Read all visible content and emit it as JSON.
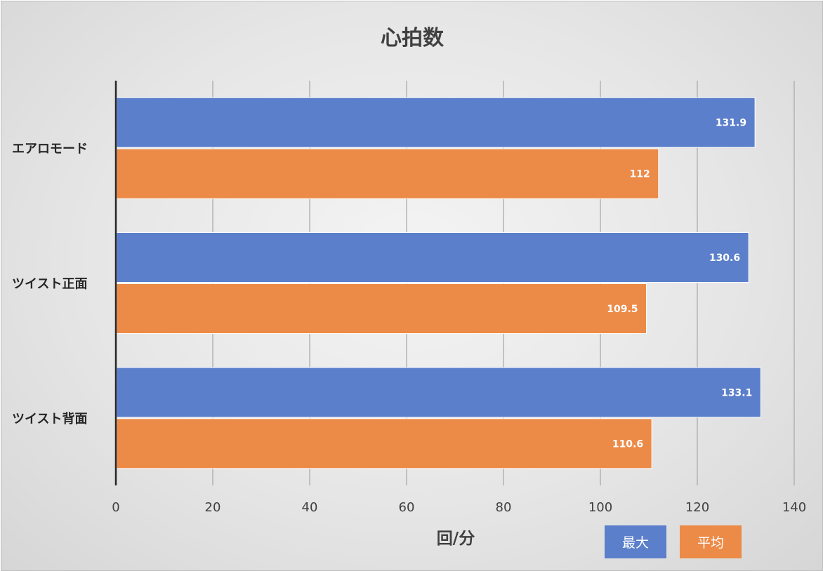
{
  "chart_data": {
    "type": "bar",
    "orientation": "horizontal",
    "title": "心拍数",
    "xlabel": "回/分",
    "ylabel": "",
    "categories": [
      "エアロモード",
      "ツイスト正面",
      "ツイスト背面"
    ],
    "series": [
      {
        "name": "最大",
        "color": "#5b7fcb",
        "values": [
          131.9,
          130.6,
          133.1
        ]
      },
      {
        "name": "平均",
        "color": "#ec8a47",
        "values": [
          112,
          109.5,
          110.6
        ]
      }
    ],
    "xlim": [
      0,
      140
    ],
    "ticks": [
      "0",
      "20",
      "40",
      "60",
      "80",
      "100",
      "120",
      "140"
    ],
    "grid": true,
    "legend_position": "bottom-right",
    "data_labels": true
  }
}
